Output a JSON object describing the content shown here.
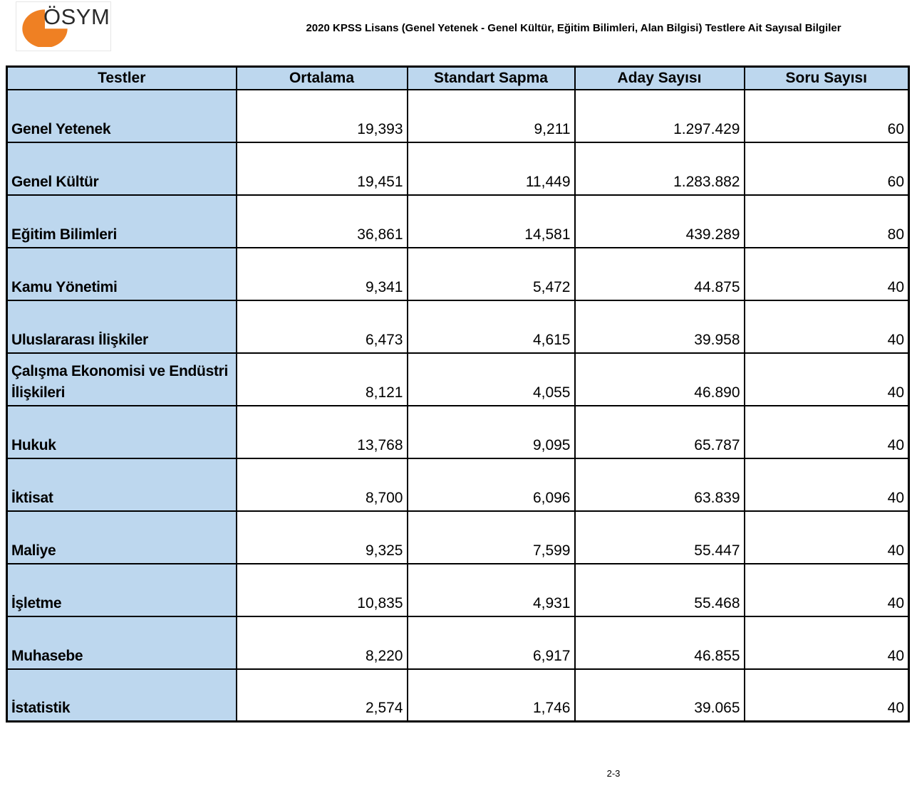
{
  "page": {
    "background": "#ffffff",
    "footer_page_number": "2-3"
  },
  "header": {
    "logo_text": "ÖSYM",
    "title": "2020 KPSS Lisans (Genel Yetenek - Genel Kültür, Eğitim Bilimleri, Alan Bilgisi) Testlere Ait Sayısal Bilgiler"
  },
  "colors": {
    "table_accent_blue": "#BDD7EE",
    "logo_orange": "#EF8023",
    "table_border": "#000000"
  },
  "table": {
    "columns": [
      "Testler",
      "Ortalama",
      "Standart Sapma",
      "Aday Sayısı",
      "Soru Sayısı"
    ],
    "rows": [
      {
        "test": "Genel Yetenek",
        "ortalama": "19,393",
        "standart_sapma": "9,211",
        "aday_sayisi": "1.297.429",
        "soru_sayisi": "60"
      },
      {
        "test": "Genel Kültür",
        "ortalama": "19,451",
        "standart_sapma": "11,449",
        "aday_sayisi": "1.283.882",
        "soru_sayisi": "60"
      },
      {
        "test": "Eğitim Bilimleri",
        "ortalama": "36,861",
        "standart_sapma": "14,581",
        "aday_sayisi": "439.289",
        "soru_sayisi": "80"
      },
      {
        "test": "Kamu Yönetimi",
        "ortalama": "9,341",
        "standart_sapma": "5,472",
        "aday_sayisi": "44.875",
        "soru_sayisi": "40"
      },
      {
        "test": "Uluslararası İlişkiler",
        "ortalama": "6,473",
        "standart_sapma": "4,615",
        "aday_sayisi": "39.958",
        "soru_sayisi": "40"
      },
      {
        "test": "Çalışma Ekonomisi ve Endüstri İlişkileri",
        "ortalama": "8,121",
        "standart_sapma": "4,055",
        "aday_sayisi": "46.890",
        "soru_sayisi": "40"
      },
      {
        "test": "Hukuk",
        "ortalama": "13,768",
        "standart_sapma": "9,095",
        "aday_sayisi": "65.787",
        "soru_sayisi": "40"
      },
      {
        "test": "İktisat",
        "ortalama": "8,700",
        "standart_sapma": "6,096",
        "aday_sayisi": "63.839",
        "soru_sayisi": "40"
      },
      {
        "test": "Maliye",
        "ortalama": "9,325",
        "standart_sapma": "7,599",
        "aday_sayisi": "55.447",
        "soru_sayisi": "40"
      },
      {
        "test": "İşletme",
        "ortalama": "10,835",
        "standart_sapma": "4,931",
        "aday_sayisi": "55.468",
        "soru_sayisi": "40"
      },
      {
        "test": "Muhasebe",
        "ortalama": "8,220",
        "standart_sapma": "6,917",
        "aday_sayisi": "46.855",
        "soru_sayisi": "40"
      },
      {
        "test": "İstatistik",
        "ortalama": "2,574",
        "standart_sapma": "1,746",
        "aday_sayisi": "39.065",
        "soru_sayisi": "40"
      }
    ]
  }
}
